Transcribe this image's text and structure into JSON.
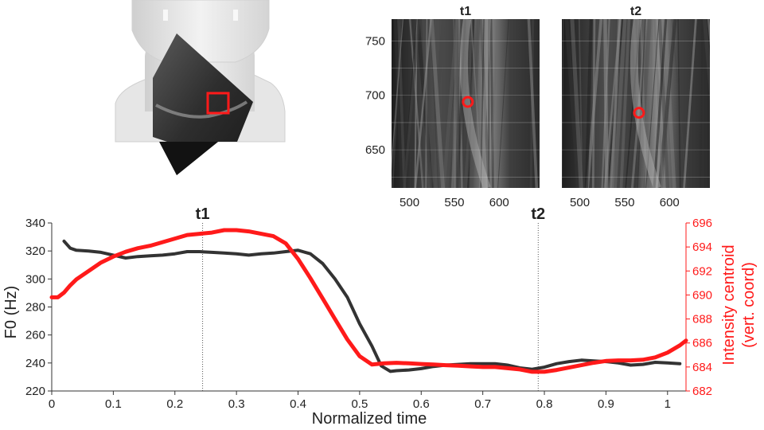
{
  "figure": {
    "panel_top_left_label": "",
    "colors": {
      "f0_line": "#333333",
      "centroid_line": "#ff1a1a",
      "marker": "#ff1a1a",
      "axis_text": "#222222",
      "right_axis_text": "#ff1a1a"
    }
  },
  "ultrasound_panels": [
    {
      "title": "t1",
      "x_ticks": [
        "500",
        "550",
        "600"
      ],
      "y_ticks": [
        "750",
        "700",
        "650"
      ],
      "xlim": [
        480,
        645
      ],
      "ylim": [
        615,
        770
      ],
      "marker": {
        "x": 565,
        "y": 694
      }
    },
    {
      "title": "t2",
      "x_ticks": [
        "500",
        "550",
        "600"
      ],
      "y_ticks": [],
      "xlim": [
        480,
        645
      ],
      "ylim": [
        615,
        770
      ],
      "marker": {
        "x": 566,
        "y": 684
      }
    }
  ],
  "chart_data": {
    "type": "line",
    "xlabel": "Normalized time",
    "ylabel_left": "F0 (Hz)",
    "ylabel_right_line1": "Intensity centroid",
    "ylabel_right_line2": "(vert. coord)",
    "xlim": [
      0,
      1.03
    ],
    "ylim_left": [
      220,
      340
    ],
    "ylim_right": [
      682,
      696
    ],
    "x_tick_labels": [
      "0",
      "0.1",
      "0.2",
      "0.3",
      "0.4",
      "0.5",
      "0.6",
      "0.7",
      "0.8",
      "0.9",
      "1"
    ],
    "y_left_tick_labels": [
      "220",
      "240",
      "260",
      "280",
      "300",
      "320",
      "340"
    ],
    "y_right_tick_labels": [
      "682",
      "684",
      "686",
      "688",
      "690",
      "692",
      "694",
      "696"
    ],
    "vlines": [
      {
        "label": "t1",
        "x": 0.245
      },
      {
        "label": "t2",
        "x": 0.79
      }
    ],
    "series": [
      {
        "name": "",
        "axis": "left",
        "color": "#333333",
        "x": [
          0.02,
          0.03,
          0.04,
          0.06,
          0.08,
          0.1,
          0.12,
          0.14,
          0.16,
          0.18,
          0.2,
          0.22,
          0.24,
          0.26,
          0.28,
          0.3,
          0.32,
          0.34,
          0.36,
          0.38,
          0.4,
          0.42,
          0.44,
          0.46,
          0.48,
          0.5,
          0.52,
          0.535,
          0.55,
          0.56,
          0.58,
          0.6,
          0.62,
          0.64,
          0.66,
          0.68,
          0.7,
          0.72,
          0.74,
          0.76,
          0.78,
          0.8,
          0.82,
          0.84,
          0.86,
          0.88,
          0.9,
          0.92,
          0.94,
          0.96,
          0.98,
          1.0,
          1.02
        ],
        "values": [
          327,
          322,
          320.5,
          320,
          319,
          317,
          315,
          316,
          316.5,
          317,
          318,
          319.5,
          319.5,
          319,
          318.5,
          318,
          317,
          318,
          318.5,
          319.5,
          320.5,
          318,
          311,
          300,
          287,
          268,
          252,
          238,
          234,
          234.5,
          235,
          236,
          237.5,
          238.5,
          239,
          239.5,
          239.5,
          239.5,
          238.5,
          236.5,
          235.5,
          237,
          239.5,
          241,
          242,
          241.5,
          241,
          240,
          238.5,
          239,
          240.5,
          240,
          239.5
        ]
      },
      {
        "name": "",
        "axis": "right",
        "color": "#ff1a1a",
        "x": [
          0.0,
          0.01,
          0.02,
          0.03,
          0.04,
          0.06,
          0.08,
          0.1,
          0.12,
          0.14,
          0.16,
          0.18,
          0.2,
          0.22,
          0.24,
          0.26,
          0.28,
          0.3,
          0.32,
          0.34,
          0.36,
          0.38,
          0.4,
          0.42,
          0.44,
          0.46,
          0.48,
          0.5,
          0.52,
          0.54,
          0.56,
          0.58,
          0.6,
          0.62,
          0.64,
          0.66,
          0.68,
          0.7,
          0.72,
          0.74,
          0.76,
          0.78,
          0.8,
          0.82,
          0.84,
          0.86,
          0.88,
          0.9,
          0.92,
          0.94,
          0.96,
          0.98,
          1.0,
          1.02,
          1.03
        ],
        "values": [
          689.8,
          689.8,
          690.2,
          690.8,
          691.3,
          692.0,
          692.7,
          693.2,
          693.6,
          693.9,
          694.1,
          694.4,
          694.7,
          695.0,
          695.1,
          695.2,
          695.4,
          695.4,
          695.3,
          695.1,
          694.9,
          694.3,
          693.0,
          691.4,
          689.7,
          688.0,
          686.3,
          684.9,
          684.2,
          684.3,
          684.35,
          684.3,
          684.25,
          684.2,
          684.15,
          684.1,
          684.05,
          684.0,
          684.0,
          683.9,
          683.8,
          683.6,
          683.6,
          683.75,
          683.95,
          684.15,
          684.35,
          684.5,
          684.55,
          684.55,
          684.6,
          684.8,
          685.2,
          685.8,
          686.2
        ]
      }
    ]
  }
}
